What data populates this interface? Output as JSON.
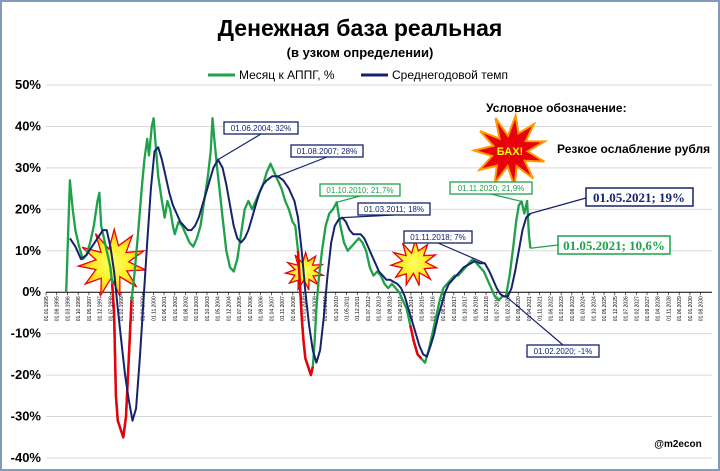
{
  "chart_data": {
    "type": "line",
    "title": "Денежная база реальная",
    "subtitle": "(в узком определении)",
    "ylim": [
      -40,
      50
    ],
    "yticks": [
      "50%",
      "40%",
      "30%",
      "20%",
      "10%",
      "0%",
      "-10%",
      "-20%",
      "-30%",
      "-40%"
    ],
    "x_tick_labels": [
      "01.01.1995",
      "01.08.1995",
      "01.03.1996",
      "01.10.1996",
      "01.05.1997",
      "01.12.1997",
      "01.07.1998",
      "01.02.1999",
      "01.09.1999",
      "01.04.2000",
      "01.11.2000",
      "01.06.2001",
      "01.01.2002",
      "01.08.2002",
      "01.03.2003",
      "01.10.2003",
      "01.05.2004",
      "01.12.2004",
      "01.07.2005",
      "01.02.2006",
      "01.09.2006",
      "01.04.2007",
      "01.11.2007",
      "01.06.2008",
      "01.01.2009",
      "01.08.2009",
      "01.03.2010",
      "01.10.2010",
      "01.05.2011",
      "01.12.2011",
      "01.07.2012",
      "01.02.2013",
      "01.09.2013",
      "01.04.2014",
      "01.11.2014",
      "01.06.2015",
      "01.01.2016",
      "01.08.2016",
      "01.03.2017",
      "01.10.2017",
      "01.05.2018",
      "01.12.2018",
      "01.07.2019",
      "01.02.2020",
      "01.09.2020",
      "01.04.2021",
      "01.11.2021",
      "01.06.2022",
      "01.01.2023",
      "01.08.2023",
      "01.03.2024",
      "01.10.2024",
      "01.05.2025",
      "01.12.2025",
      "01.07.2026",
      "01.02.2027",
      "01.09.2027",
      "01.04.2028",
      "01.11.2028",
      "01.06.2029",
      "01.01.2030",
      "01.08.2030"
    ],
    "legend_position": "top",
    "series": [
      {
        "name": "Месяц к АППГ, %",
        "color": "#1fa04a",
        "highlight_color": "#e8000b",
        "points": [
          [
            1996.1,
            0
          ],
          [
            1996.2,
            14
          ],
          [
            1996.3,
            27
          ],
          [
            1996.45,
            20
          ],
          [
            1996.6,
            15
          ],
          [
            1996.8,
            11
          ],
          [
            1997.0,
            8
          ],
          [
            1997.2,
            9
          ],
          [
            1997.4,
            12
          ],
          [
            1997.6,
            16
          ],
          [
            1997.8,
            22
          ],
          [
            1997.9,
            24
          ],
          [
            1998.0,
            16
          ],
          [
            1998.2,
            12
          ],
          [
            1998.4,
            8
          ],
          [
            1998.5,
            6
          ],
          [
            1998.6,
            2
          ],
          [
            1998.7,
            -5
          ],
          [
            1998.8,
            -25
          ],
          [
            1998.9,
            -31
          ],
          [
            1999.05,
            -33
          ],
          [
            1999.2,
            -35
          ],
          [
            1999.35,
            -30
          ],
          [
            1999.5,
            -16
          ],
          [
            1999.65,
            -2
          ],
          [
            1999.8,
            4
          ],
          [
            2000.0,
            14
          ],
          [
            2000.2,
            25
          ],
          [
            2000.35,
            32
          ],
          [
            2000.5,
            37
          ],
          [
            2000.6,
            33
          ],
          [
            2000.75,
            40
          ],
          [
            2000.85,
            42
          ],
          [
            2000.95,
            36
          ],
          [
            2001.1,
            28
          ],
          [
            2001.3,
            22
          ],
          [
            2001.45,
            18
          ],
          [
            2001.6,
            22
          ],
          [
            2001.75,
            20
          ],
          [
            2001.9,
            16
          ],
          [
            2002.0,
            14
          ],
          [
            2002.2,
            17
          ],
          [
            2002.4,
            16
          ],
          [
            2002.6,
            14
          ],
          [
            2002.8,
            12
          ],
          [
            2003.0,
            11
          ],
          [
            2003.2,
            13
          ],
          [
            2003.4,
            16
          ],
          [
            2003.6,
            22
          ],
          [
            2003.8,
            28
          ],
          [
            2003.95,
            34
          ],
          [
            2004.05,
            42
          ],
          [
            2004.15,
            37
          ],
          [
            2004.3,
            30
          ],
          [
            2004.45,
            24
          ],
          [
            2004.6,
            18
          ],
          [
            2004.8,
            10
          ],
          [
            2005.0,
            6
          ],
          [
            2005.2,
            5
          ],
          [
            2005.4,
            8
          ],
          [
            2005.6,
            14
          ],
          [
            2005.8,
            20
          ],
          [
            2006.0,
            22
          ],
          [
            2006.2,
            20
          ],
          [
            2006.4,
            22
          ],
          [
            2006.6,
            24
          ],
          [
            2006.8,
            26
          ],
          [
            2007.0,
            29
          ],
          [
            2007.2,
            31
          ],
          [
            2007.4,
            29
          ],
          [
            2007.6,
            27
          ],
          [
            2007.8,
            25
          ],
          [
            2008.0,
            22
          ],
          [
            2008.2,
            20
          ],
          [
            2008.4,
            17
          ],
          [
            2008.55,
            16
          ],
          [
            2008.7,
            10
          ],
          [
            2008.8,
            2
          ],
          [
            2008.9,
            -6
          ],
          [
            2009.0,
            -12
          ],
          [
            2009.1,
            -16
          ],
          [
            2009.25,
            -18
          ],
          [
            2009.4,
            -20
          ],
          [
            2009.5,
            -18
          ],
          [
            2009.6,
            -12
          ],
          [
            2009.7,
            -4
          ],
          [
            2009.8,
            2
          ],
          [
            2009.9,
            6
          ],
          [
            2010.0,
            10
          ],
          [
            2010.2,
            16
          ],
          [
            2010.4,
            19
          ],
          [
            2010.6,
            20
          ],
          [
            2010.8,
            21.7
          ],
          [
            2011.0,
            16
          ],
          [
            2011.2,
            12
          ],
          [
            2011.4,
            10
          ],
          [
            2011.6,
            11
          ],
          [
            2011.8,
            12
          ],
          [
            2012.0,
            13
          ],
          [
            2012.2,
            12
          ],
          [
            2012.4,
            10
          ],
          [
            2012.6,
            6
          ],
          [
            2012.8,
            4
          ],
          [
            2013.0,
            5
          ],
          [
            2013.2,
            4
          ],
          [
            2013.4,
            2
          ],
          [
            2013.6,
            1
          ],
          [
            2013.8,
            2
          ],
          [
            2014.0,
            1
          ],
          [
            2014.2,
            0
          ],
          [
            2014.4,
            -2
          ],
          [
            2014.6,
            -4
          ],
          [
            2014.8,
            -8
          ],
          [
            2015.0,
            -12
          ],
          [
            2015.2,
            -15
          ],
          [
            2015.4,
            -16
          ],
          [
            2015.6,
            -17
          ],
          [
            2015.8,
            -14
          ],
          [
            2016.0,
            -10
          ],
          [
            2016.2,
            -6
          ],
          [
            2016.4,
            -2
          ],
          [
            2016.6,
            1
          ],
          [
            2016.8,
            2
          ],
          [
            2017.0,
            3
          ],
          [
            2017.2,
            4
          ],
          [
            2017.4,
            4
          ],
          [
            2017.6,
            5
          ],
          [
            2017.8,
            6
          ],
          [
            2018.0,
            7
          ],
          [
            2018.2,
            8
          ],
          [
            2018.4,
            7
          ],
          [
            2018.6,
            6
          ],
          [
            2018.8,
            5
          ],
          [
            2019.0,
            3
          ],
          [
            2019.2,
            1
          ],
          [
            2019.4,
            -1
          ],
          [
            2019.6,
            -2
          ],
          [
            2019.8,
            -1
          ],
          [
            2020.0,
            -1
          ],
          [
            2020.2,
            4
          ],
          [
            2020.4,
            11
          ],
          [
            2020.55,
            17
          ],
          [
            2020.7,
            21
          ],
          [
            2020.85,
            21.9
          ],
          [
            2021.0,
            19
          ],
          [
            2021.15,
            22
          ],
          [
            2021.25,
            14
          ],
          [
            2021.33,
            10.6
          ]
        ],
        "highlight_ranges": [
          [
            1998.55,
            1999.65
          ],
          [
            2008.65,
            2009.55
          ],
          [
            2014.7,
            2015.45
          ]
        ]
      },
      {
        "name": "Среднегодовой темп",
        "color": "#14236b",
        "points": [
          [
            1996.3,
            13
          ],
          [
            1996.6,
            11
          ],
          [
            1996.9,
            8
          ],
          [
            1997.2,
            9
          ],
          [
            1997.5,
            11
          ],
          [
            1997.8,
            13
          ],
          [
            1998.1,
            15
          ],
          [
            1998.3,
            15
          ],
          [
            1998.5,
            11
          ],
          [
            1998.7,
            5
          ],
          [
            1998.9,
            -4
          ],
          [
            1999.1,
            -12
          ],
          [
            1999.3,
            -20
          ],
          [
            1999.5,
            -26
          ],
          [
            1999.7,
            -31
          ],
          [
            1999.9,
            -28
          ],
          [
            2000.1,
            -16
          ],
          [
            2000.3,
            -2
          ],
          [
            2000.5,
            12
          ],
          [
            2000.7,
            25
          ],
          [
            2000.9,
            34
          ],
          [
            2001.1,
            35
          ],
          [
            2001.3,
            32
          ],
          [
            2001.5,
            28
          ],
          [
            2001.7,
            24
          ],
          [
            2001.9,
            21
          ],
          [
            2002.1,
            19
          ],
          [
            2002.3,
            17
          ],
          [
            2002.5,
            16
          ],
          [
            2002.7,
            15
          ],
          [
            2002.9,
            15
          ],
          [
            2003.1,
            16
          ],
          [
            2003.3,
            18
          ],
          [
            2003.5,
            21
          ],
          [
            2003.7,
            24
          ],
          [
            2003.9,
            27
          ],
          [
            2004.1,
            30
          ],
          [
            2004.35,
            32
          ],
          [
            2004.6,
            30
          ],
          [
            2004.8,
            26
          ],
          [
            2005.0,
            21
          ],
          [
            2005.2,
            16
          ],
          [
            2005.4,
            13
          ],
          [
            2005.6,
            12
          ],
          [
            2005.8,
            13
          ],
          [
            2006.0,
            15
          ],
          [
            2006.2,
            18
          ],
          [
            2006.4,
            21
          ],
          [
            2006.6,
            24
          ],
          [
            2006.8,
            26
          ],
          [
            2007.0,
            27
          ],
          [
            2007.3,
            28
          ],
          [
            2007.6,
            28
          ],
          [
            2007.9,
            27
          ],
          [
            2008.2,
            25
          ],
          [
            2008.5,
            22
          ],
          [
            2008.7,
            18
          ],
          [
            2008.9,
            10
          ],
          [
            2009.1,
            0
          ],
          [
            2009.3,
            -8
          ],
          [
            2009.5,
            -14
          ],
          [
            2009.7,
            -17
          ],
          [
            2009.9,
            -14
          ],
          [
            2010.1,
            -6
          ],
          [
            2010.3,
            4
          ],
          [
            2010.5,
            12
          ],
          [
            2010.7,
            16
          ],
          [
            2010.9,
            17.5
          ],
          [
            2011.1,
            18
          ],
          [
            2011.3,
            17
          ],
          [
            2011.5,
            15
          ],
          [
            2011.7,
            14
          ],
          [
            2011.9,
            14
          ],
          [
            2012.1,
            14
          ],
          [
            2012.3,
            13
          ],
          [
            2012.5,
            11
          ],
          [
            2012.7,
            9
          ],
          [
            2012.9,
            7
          ],
          [
            2013.1,
            5
          ],
          [
            2013.3,
            4
          ],
          [
            2013.5,
            3
          ],
          [
            2013.7,
            3
          ],
          [
            2013.9,
            2.5
          ],
          [
            2014.1,
            2
          ],
          [
            2014.3,
            1
          ],
          [
            2014.5,
            -1
          ],
          [
            2014.7,
            -4
          ],
          [
            2014.9,
            -7
          ],
          [
            2015.1,
            -10
          ],
          [
            2015.3,
            -13
          ],
          [
            2015.5,
            -15
          ],
          [
            2015.7,
            -15.5
          ],
          [
            2015.9,
            -13
          ],
          [
            2016.1,
            -10
          ],
          [
            2016.3,
            -6
          ],
          [
            2016.5,
            -3
          ],
          [
            2016.7,
            0
          ],
          [
            2016.9,
            2
          ],
          [
            2017.1,
            3
          ],
          [
            2017.3,
            4
          ],
          [
            2017.5,
            5
          ],
          [
            2017.7,
            6
          ],
          [
            2017.9,
            6.5
          ],
          [
            2018.1,
            7
          ],
          [
            2018.3,
            7.5
          ],
          [
            2018.6,
            7
          ],
          [
            2018.85,
            7
          ],
          [
            2019.1,
            5
          ],
          [
            2019.3,
            3
          ],
          [
            2019.5,
            1
          ],
          [
            2019.7,
            -0.5
          ],
          [
            2019.9,
            -1
          ],
          [
            2020.1,
            -1
          ],
          [
            2020.3,
            1
          ],
          [
            2020.5,
            5
          ],
          [
            2020.7,
            10
          ],
          [
            2020.9,
            15
          ],
          [
            2021.1,
            18
          ],
          [
            2021.33,
            19
          ]
        ]
      }
    ],
    "annotations": {
      "peak_2004": "01.06.2004; 32%",
      "peak_2007": "01.08.2007; 28%",
      "green_2010": "01.10.2010; 21,7%",
      "navy_2011": "01.03.2011; 18%",
      "navy_2018": "01.11.2018; 7%",
      "green_2020": "01.11.2020; 21,9%",
      "navy_2020": "01.02.2020; -1%",
      "last_navy": "01.05.2021; 19%",
      "last_green": "01.05.2021; 10,6%"
    },
    "legend_note": {
      "title": "Условное обозначение:",
      "burst_word": "БАХ!",
      "description": "Резкое ослабление рубля"
    },
    "watermark": "@m2econ"
  }
}
